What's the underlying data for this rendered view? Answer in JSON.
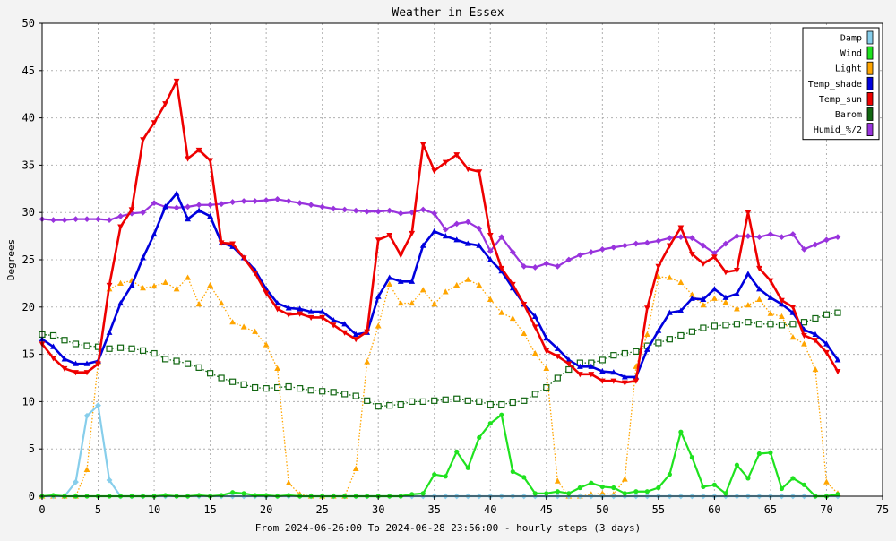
{
  "chart_data": {
    "type": "line",
    "title": "Weather in Essex",
    "xlabel": "From 2024-06-26:00 To 2024-06-28 23:56:00 - hourly steps (3 days)",
    "ylabel": "Degrees",
    "xlim": [
      0,
      75
    ],
    "ylim": [
      0,
      50
    ],
    "xticks": [
      "0",
      "5",
      "10",
      "15",
      "20",
      "25",
      "30",
      "35",
      "40",
      "45",
      "50",
      "55",
      "60",
      "65",
      "70",
      "75"
    ],
    "yticks": [
      "0",
      "5",
      "10",
      "15",
      "20",
      "25",
      "30",
      "35",
      "40",
      "45",
      "50"
    ],
    "grid": true,
    "legend_position": "top-right",
    "series": [
      {
        "name": "Damp",
        "color": "#87ceeb",
        "style": "solid",
        "marker": "diamond",
        "values": [
          0,
          0,
          0,
          1.5,
          8.5,
          9.6,
          1.7,
          0,
          0,
          0,
          0,
          0,
          0,
          0,
          0,
          0,
          0,
          0,
          0,
          0,
          0,
          0,
          0,
          0,
          0,
          0,
          0,
          0,
          0,
          0,
          0,
          0,
          0,
          0,
          0,
          0,
          0,
          0,
          0,
          0,
          0,
          0,
          0,
          0,
          0,
          0,
          0,
          0,
          0,
          0,
          0,
          0,
          0,
          0,
          0,
          0,
          0,
          0,
          0,
          0,
          0,
          0,
          0,
          0,
          0,
          0,
          0,
          0,
          0,
          0,
          0,
          0
        ]
      },
      {
        "name": "Wind",
        "color": "#1fe21f",
        "style": "solid",
        "marker": "circle",
        "values": [
          0,
          0.1,
          0,
          0,
          0,
          0,
          0,
          0,
          0,
          0,
          0,
          0.1,
          0,
          0,
          0.1,
          0,
          0.1,
          0.4,
          0.3,
          0.1,
          0.1,
          0,
          0.1,
          0,
          0,
          0,
          0,
          0,
          0,
          0,
          0,
          0,
          0,
          0.2,
          0.3,
          2.3,
          2.1,
          4.7,
          3,
          6.2,
          7.7,
          8.6,
          2.6,
          2,
          0.3,
          0.3,
          0.5,
          0.3,
          0.9,
          1.4,
          1,
          0.9,
          0.3,
          0.5,
          0.5,
          0.9,
          2.3,
          6.8,
          4.1,
          1,
          1.2,
          0.3,
          3.3,
          1.9,
          4.5,
          4.6,
          0.8,
          1.9,
          1.2,
          0,
          0,
          0.2
        ]
      },
      {
        "name": "Light",
        "color": "#ffa500",
        "style": "dotted",
        "marker": "triangle",
        "values": [
          0,
          0,
          0,
          0,
          2.8,
          14.2,
          21.9,
          22.5,
          22.8,
          22,
          22.2,
          22.6,
          21.9,
          23.1,
          20.3,
          22.3,
          20.4,
          18.4,
          17.9,
          17.4,
          16,
          13.5,
          1.4,
          0.2,
          0,
          0,
          0,
          0,
          2.9,
          14.2,
          18,
          22.4,
          20.4,
          20.4,
          21.8,
          20.3,
          21.6,
          22.3,
          22.9,
          22.3,
          20.8,
          19.4,
          18.8,
          17.2,
          15.1,
          13.5,
          1.6,
          0,
          0,
          0.2,
          0.3,
          0.2,
          1.8,
          13.7,
          17.1,
          23.2,
          23.1,
          22.6,
          21.3,
          20.2,
          20.9,
          20.5,
          19.8,
          20.2,
          20.8,
          19.3,
          19,
          16.8,
          16.1,
          13.4,
          1.5,
          0.3
        ]
      },
      {
        "name": "Temp_shade",
        "color": "#0000dd",
        "style": "solid",
        "marker": "triangle",
        "values": [
          16.6,
          15.8,
          14.5,
          14,
          14,
          14.3,
          17.3,
          20.4,
          22.3,
          25.2,
          27.7,
          30.6,
          32,
          29.3,
          30.2,
          29.6,
          26.8,
          26.4,
          25.2,
          23.9,
          21.9,
          20.4,
          19.9,
          19.8,
          19.5,
          19.5,
          18.6,
          18.2,
          17.1,
          17.3,
          21.1,
          23.1,
          22.7,
          22.7,
          26.5,
          28,
          27.5,
          27.1,
          26.7,
          26.5,
          25,
          23.8,
          22,
          20.3,
          19,
          16.7,
          15.6,
          14.4,
          13.7,
          13.7,
          13.2,
          13.1,
          12.6,
          12.6,
          15.5,
          17.5,
          19.4,
          19.6,
          20.9,
          20.8,
          21.9,
          21,
          21.4,
          23.5,
          21.9,
          21,
          20.3,
          19.4,
          17.6,
          17.1,
          16.1,
          14.4
        ]
      },
      {
        "name": "Temp_sun",
        "color": "#ee0000",
        "style": "solid",
        "marker": "triangle-down",
        "values": [
          16.1,
          14.6,
          13.5,
          13.1,
          13.1,
          14,
          22.3,
          28.5,
          30.3,
          37.7,
          39.5,
          41.5,
          43.9,
          35.7,
          36.6,
          35.5,
          26.8,
          26.7,
          25.2,
          23.6,
          21.5,
          19.8,
          19.2,
          19.3,
          18.9,
          18.9,
          18.1,
          17.3,
          16.6,
          17.4,
          27.1,
          27.6,
          25.5,
          27.8,
          37.2,
          34.4,
          35.3,
          36.1,
          34.6,
          34.3,
          27.6,
          24.1,
          22.4,
          20.3,
          17.9,
          15.4,
          14.8,
          14,
          12.9,
          12.9,
          12.2,
          12.2,
          12,
          12.2,
          19.9,
          24.3,
          26.5,
          28.4,
          25.6,
          24.6,
          25.3,
          23.7,
          23.9,
          30,
          24.1,
          22.8,
          20.7,
          20,
          17,
          16.5,
          15.2,
          13.2
        ]
      },
      {
        "name": "Barom",
        "color": "#116611",
        "style": "dotted",
        "marker": "square",
        "values": [
          17.1,
          17,
          16.5,
          16.1,
          15.9,
          15.8,
          15.6,
          15.7,
          15.6,
          15.4,
          15.1,
          14.5,
          14.3,
          14,
          13.6,
          13,
          12.5,
          12.1,
          11.8,
          11.5,
          11.4,
          11.5,
          11.6,
          11.4,
          11.2,
          11.1,
          11,
          10.8,
          10.6,
          10.1,
          9.5,
          9.6,
          9.7,
          10,
          10,
          10.1,
          10.2,
          10.3,
          10.1,
          10,
          9.7,
          9.7,
          9.9,
          10.1,
          10.8,
          11.5,
          12.5,
          13.4,
          14.1,
          14.1,
          14.4,
          14.9,
          15.1,
          15.3,
          15.9,
          16.2,
          16.6,
          17,
          17.4,
          17.8,
          18,
          18.1,
          18.2,
          18.4,
          18.2,
          18.2,
          18.1,
          18.2,
          18.4,
          18.8,
          19.2,
          19.4
        ]
      },
      {
        "name": "Humid_%/2",
        "color": "#9933dd",
        "style": "solid",
        "marker": "diamond",
        "values": [
          29.3,
          29.2,
          29.2,
          29.3,
          29.3,
          29.3,
          29.2,
          29.6,
          29.9,
          30,
          31,
          30.6,
          30.5,
          30.6,
          30.8,
          30.8,
          30.9,
          31.1,
          31.2,
          31.2,
          31.3,
          31.4,
          31.2,
          31,
          30.8,
          30.6,
          30.4,
          30.3,
          30.2,
          30.1,
          30.1,
          30.2,
          29.9,
          30,
          30.3,
          29.9,
          28.2,
          28.8,
          29,
          28.3,
          25.9,
          27.4,
          25.8,
          24.3,
          24.2,
          24.6,
          24.3,
          25,
          25.5,
          25.8,
          26.1,
          26.3,
          26.5,
          26.7,
          26.8,
          27,
          27.3,
          27.4,
          27.3,
          26.5,
          25.7,
          26.7,
          27.5,
          27.5,
          27.4,
          27.7,
          27.4,
          27.7,
          26.1,
          26.6,
          27.1,
          27.4
        ]
      }
    ]
  }
}
